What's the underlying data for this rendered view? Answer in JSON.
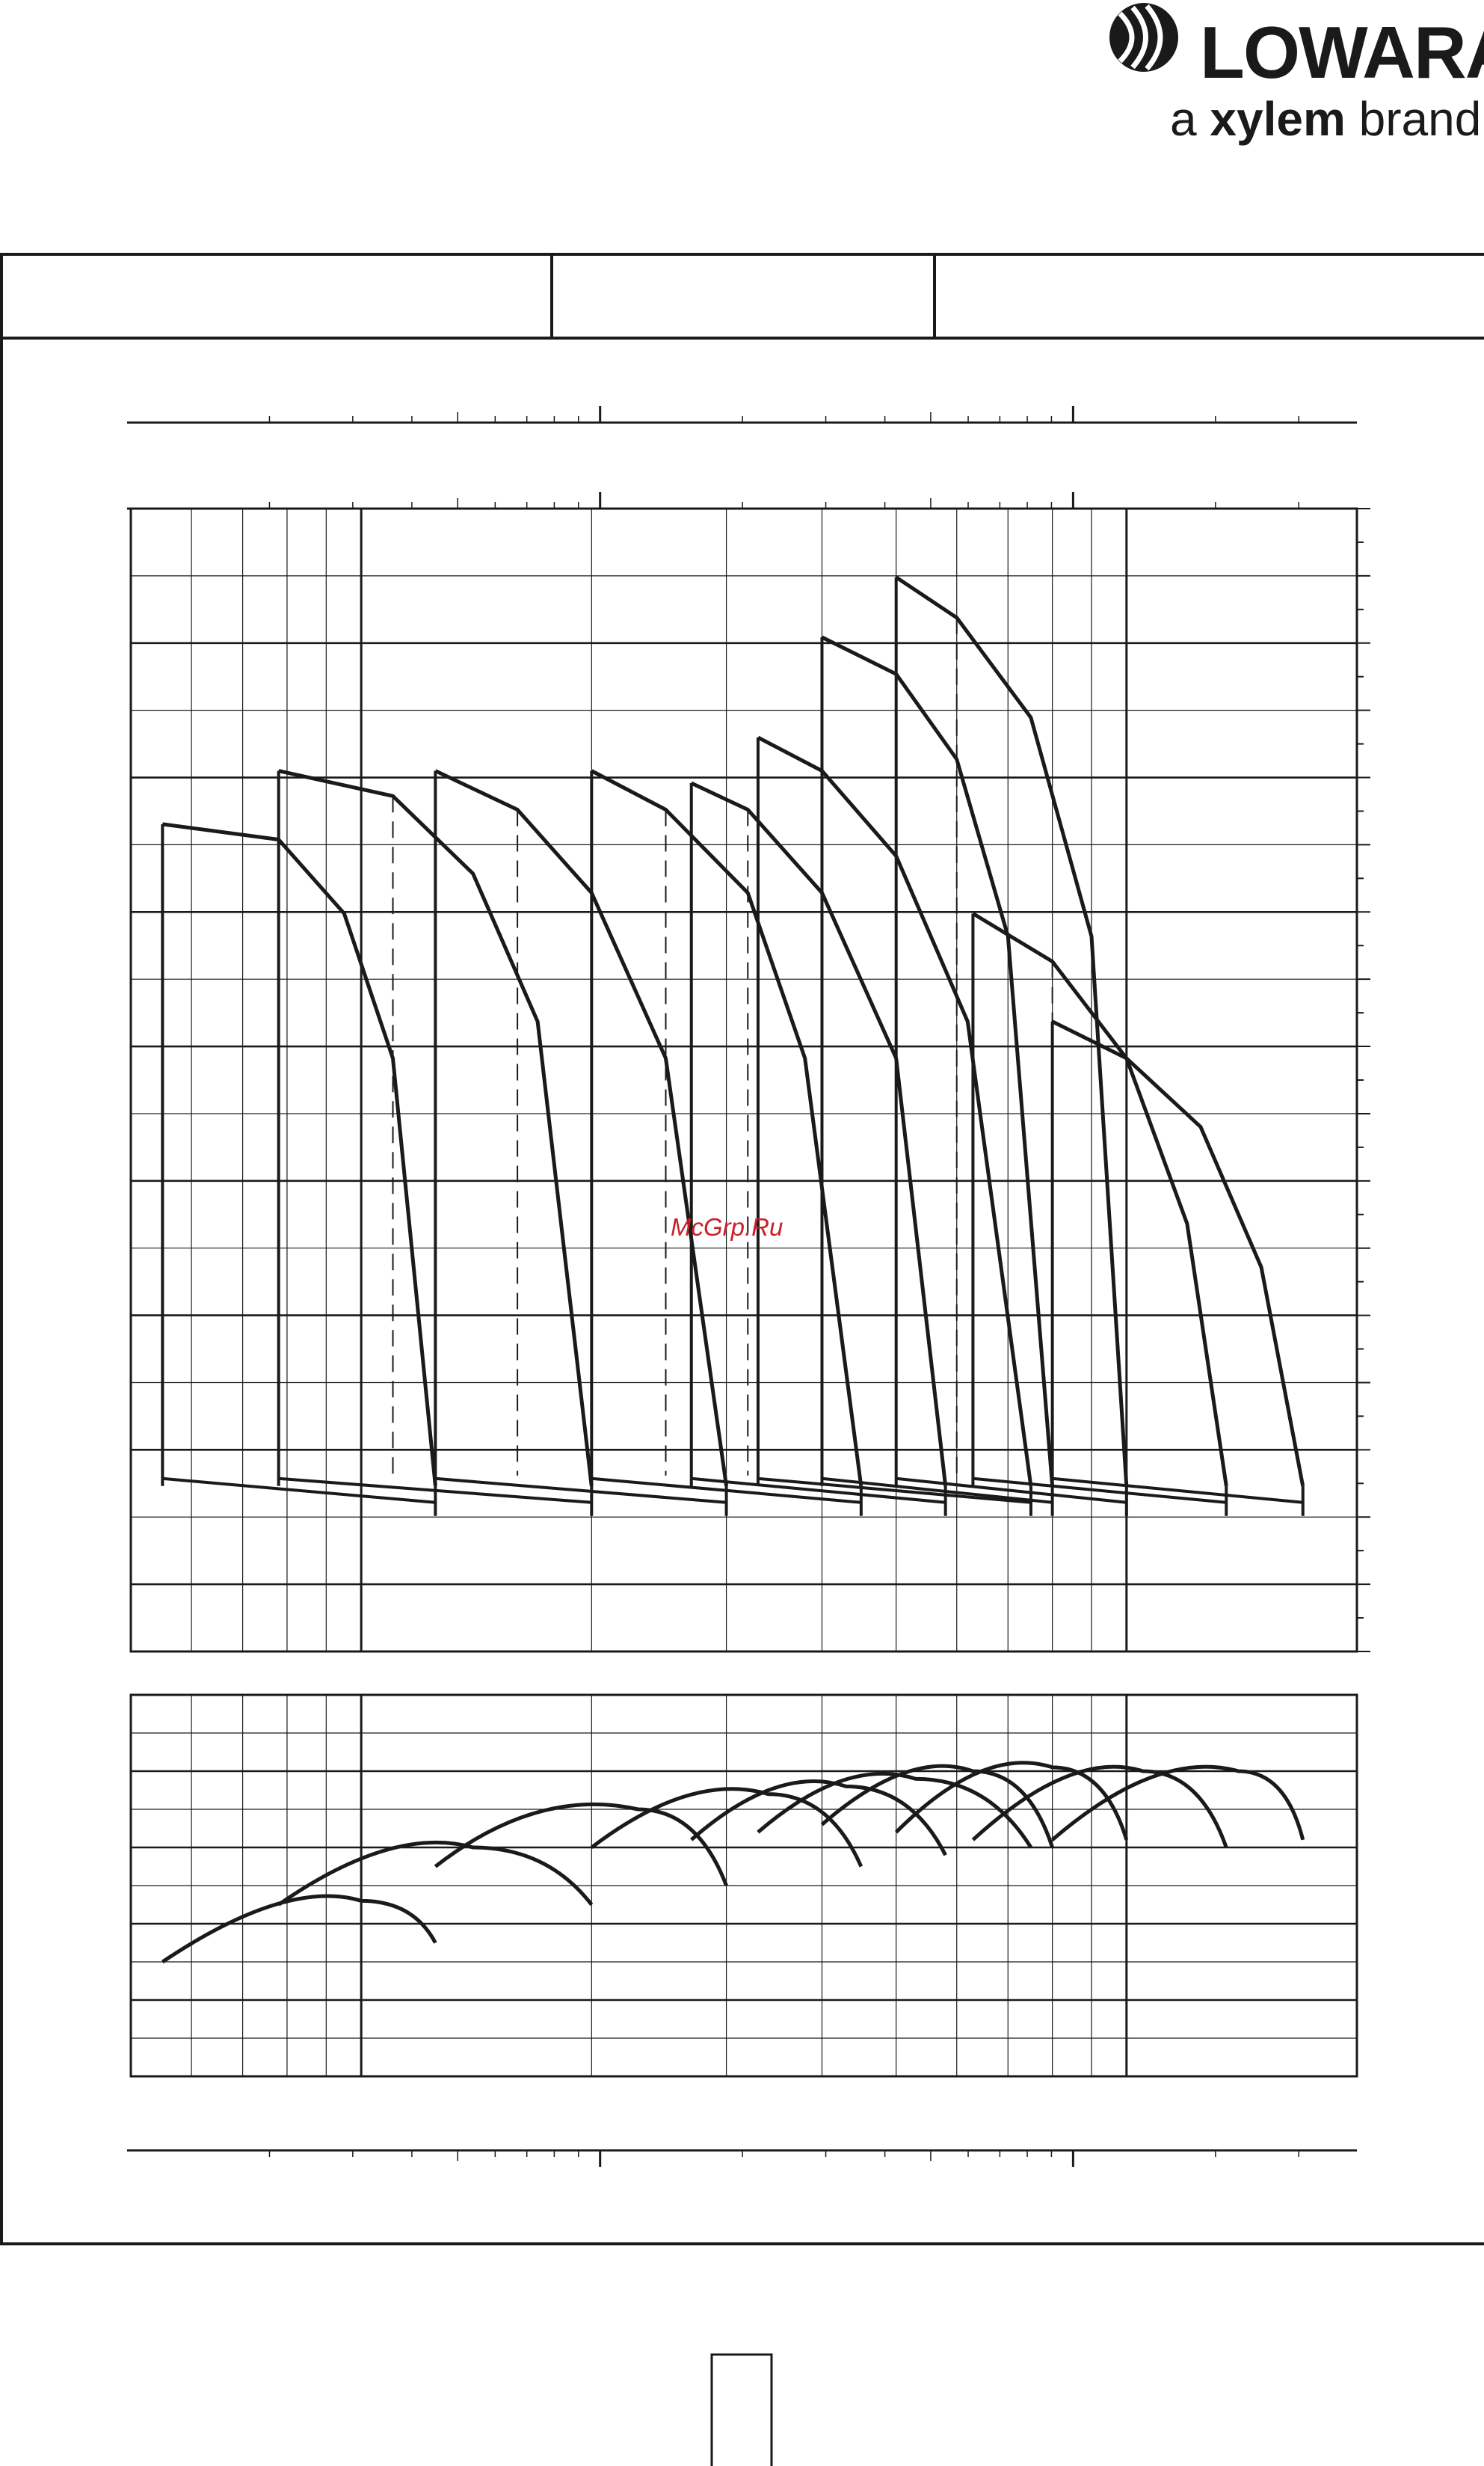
{
  "brand": {
    "name": "LOWARA",
    "tagline_prefix": "a",
    "tagline_brand": "xylem",
    "tagline_suffix": "brand"
  },
  "watermark": "McGrp.Ru",
  "chart_data": {
    "type": "line",
    "title": "",
    "xlabel": "",
    "ylabel": "",
    "x_scale": "log",
    "y_scale": "log",
    "grid": true,
    "legend": "none",
    "panels": [
      {
        "name": "head",
        "series": [
          {
            "x": [
              0.55,
              0.78,
              0.95,
              1.1,
              1.25
            ],
            "y": [
              0.16,
              0.15,
              0.11,
              0.06,
              0.01
            ]
          },
          {
            "x": [
              0.78,
              1.1,
              1.4,
              1.7,
              2.0
            ],
            "y": [
              0.2,
              0.18,
              0.13,
              0.07,
              0.01
            ]
          },
          {
            "x": [
              1.25,
              1.6,
              2.0,
              2.5,
              3.0
            ],
            "y": [
              0.2,
              0.17,
              0.12,
              0.06,
              0.01
            ]
          },
          {
            "x": [
              2.0,
              2.5,
              3.2,
              3.8,
              4.5
            ],
            "y": [
              0.2,
              0.17,
              0.12,
              0.06,
              0.01
            ]
          },
          {
            "x": [
              2.7,
              3.2,
              4.0,
              5.0,
              5.8
            ],
            "y": [
              0.19,
              0.17,
              0.12,
              0.06,
              0.01
            ]
          },
          {
            "x": [
              3.3,
              4.0,
              5.0,
              6.2,
              7.5
            ],
            "y": [
              0.23,
              0.2,
              0.14,
              0.07,
              0.01
            ]
          },
          {
            "x": [
              4.0,
              5.0,
              6.0,
              7.0,
              8.0
            ],
            "y": [
              0.35,
              0.3,
              0.21,
              0.1,
              0.01
            ]
          },
          {
            "x": [
              5.0,
              6.0,
              7.5,
              9.0,
              10.0
            ],
            "y": [
              0.45,
              0.38,
              0.25,
              0.1,
              0.01
            ]
          },
          {
            "x": [
              6.3,
              8.0,
              10.0,
              12.0,
              13.5
            ],
            "y": [
              0.11,
              0.09,
              0.06,
              0.03,
              0.01
            ]
          },
          {
            "x": [
              8.0,
              10.0,
              12.5,
              15.0,
              17.0
            ],
            "y": [
              0.07,
              0.06,
              0.045,
              0.025,
              0.01
            ]
          }
        ]
      },
      {
        "name": "efficiency",
        "series": [
          {
            "x": [
              0.55,
              0.8,
              1.0,
              1.25
            ],
            "y": [
              0.3,
              0.45,
              0.46,
              0.35
            ]
          },
          {
            "x": [
              0.78,
              1.1,
              1.4,
              2.0
            ],
            "y": [
              0.45,
              0.58,
              0.6,
              0.45
            ]
          },
          {
            "x": [
              1.25,
              1.7,
              2.3,
              3.0
            ],
            "y": [
              0.55,
              0.68,
              0.7,
              0.5
            ]
          },
          {
            "x": [
              2.0,
              2.7,
              3.4,
              4.5
            ],
            "y": [
              0.6,
              0.72,
              0.74,
              0.55
            ]
          },
          {
            "x": [
              2.7,
              3.5,
              4.3,
              5.8
            ],
            "y": [
              0.62,
              0.74,
              0.76,
              0.58
            ]
          },
          {
            "x": [
              3.3,
              4.3,
              5.3,
              7.5
            ],
            "y": [
              0.64,
              0.76,
              0.78,
              0.6
            ]
          },
          {
            "x": [
              4.0,
              5.2,
              6.3,
              8.0
            ],
            "y": [
              0.66,
              0.78,
              0.8,
              0.6
            ]
          },
          {
            "x": [
              5.0,
              6.5,
              8.0,
              10.0
            ],
            "y": [
              0.64,
              0.79,
              0.81,
              0.62
            ]
          },
          {
            "x": [
              6.3,
              8.5,
              10.5,
              13.5
            ],
            "y": [
              0.62,
              0.78,
              0.8,
              0.6
            ]
          },
          {
            "x": [
              8.0,
              11.0,
              14.0,
              17.0
            ],
            "y": [
              0.62,
              0.78,
              0.8,
              0.62
            ]
          }
        ]
      }
    ]
  }
}
